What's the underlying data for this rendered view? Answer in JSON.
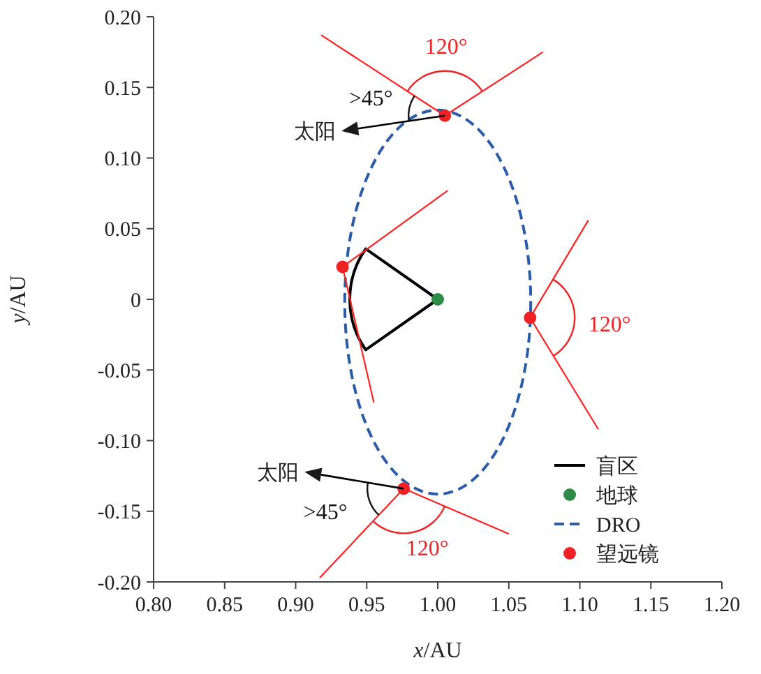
{
  "chart_data": {
    "type": "line",
    "xlabel": "x/AU",
    "ylabel": "y/AU",
    "xlim": [
      0.8,
      1.2
    ],
    "ylim": [
      -0.2,
      0.2
    ],
    "xticks": [
      {
        "value": 0.8,
        "label": "0.80"
      },
      {
        "value": 0.85,
        "label": "0.85"
      },
      {
        "value": 0.9,
        "label": "0.90"
      },
      {
        "value": 0.95,
        "label": "0.95"
      },
      {
        "value": 1.0,
        "label": "1.00"
      },
      {
        "value": 1.05,
        "label": "1.05"
      },
      {
        "value": 1.1,
        "label": "1.10"
      },
      {
        "value": 1.15,
        "label": "1.15"
      },
      {
        "value": 1.2,
        "label": "1.20"
      }
    ],
    "yticks": [
      {
        "value": -0.2,
        "label": "-0.20"
      },
      {
        "value": -0.15,
        "label": "-0.15"
      },
      {
        "value": -0.1,
        "label": "-0.10"
      },
      {
        "value": -0.05,
        "label": "-0.05"
      },
      0,
      {
        "value": 0.05,
        "label": "0.05"
      },
      {
        "value": 0.1,
        "label": "0.10"
      },
      {
        "value": 0.15,
        "label": "0.15"
      },
      {
        "value": 0.2,
        "label": "0.20"
      }
    ],
    "grid": false,
    "legend": "bottom right",
    "series": [
      {
        "color": "#ff2020",
        "x": [
          0.918,
          1.005
        ],
        "values": [
          0.187,
          0.13
        ]
      },
      {
        "color": "#ff2020",
        "x": [
          1.005,
          1.074
        ],
        "values": [
          0.13,
          0.175
        ]
      },
      {
        "color": "#ff2020",
        "x": [
          0.933,
          1.007
        ],
        "values": [
          0.023,
          0.077
        ]
      },
      {
        "color": "#ff2020",
        "x": [
          0.933,
          0.955
        ],
        "values": [
          0.023,
          -0.073
        ]
      },
      {
        "color": "#ff2020",
        "x": [
          1.065,
          1.106
        ],
        "values": [
          -0.013,
          0.056
        ]
      },
      {
        "color": "#ff2020",
        "x": [
          1.065,
          1.113
        ],
        "values": [
          -0.013,
          -0.092
        ]
      },
      {
        "color": "#ff2020",
        "x": [
          0.917,
          0.976
        ],
        "values": [
          -0.197,
          -0.134
        ]
      },
      {
        "color": "#ff2020",
        "x": [
          0.976,
          1.05
        ],
        "values": [
          -0.134,
          -0.166
        ]
      },
      {
        "name": "盲区",
        "color": "#000000"
      },
      {
        "name": "地球",
        "type": "scatter",
        "marker": "circle",
        "color": "#2e8b45",
        "x": [
          1.0
        ],
        "values": [
          0
        ]
      },
      {
        "name": "DRO",
        "line_style": "dashed",
        "color": "#2a5caa"
      },
      {
        "name": "望远镜",
        "type": "scatter",
        "marker": "circle",
        "color": "#ee2222",
        "x": [
          1.005,
          0.933,
          1.065,
          0.976
        ],
        "values": [
          0.13,
          0.023,
          -0.013,
          -0.134
        ]
      }
    ],
    "annotations": [
      {
        "text": "120°",
        "x": 1.005,
        "y": 0.13
      },
      {
        "text": ">45°",
        "x": 1.005,
        "y": 0.13
      },
      {
        "text": "太阳",
        "x": 1.005,
        "y": 0.13
      },
      {
        "text": "120°",
        "x": 1.065,
        "y": -0.013
      },
      {
        "text": "120°",
        "x": 0.976,
        "y": -0.134
      },
      {
        "text": ">45°",
        "x": 0.976,
        "y": -0.134
      },
      {
        "text": "太阳",
        "x": 0.976,
        "y": -0.134
      }
    ]
  }
}
